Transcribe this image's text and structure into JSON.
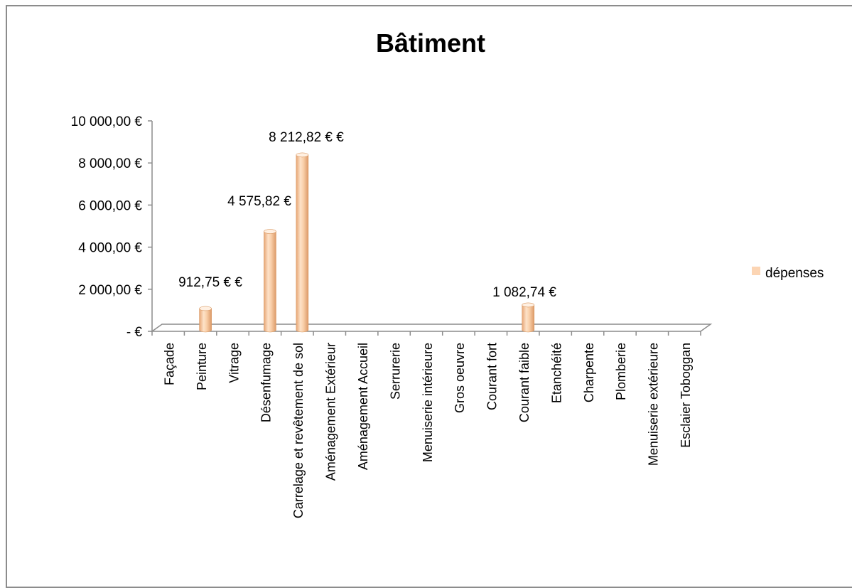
{
  "chart_data": {
    "type": "bar",
    "title": "Bâtiment",
    "categories": [
      "Façade",
      "Peinture",
      "Vitrage",
      "Désenfumage",
      "Carrelage et revêtement de sol",
      "Aménagement Extérieur",
      "Aménagement Accueil",
      "Serrurerie",
      "Menuiserie intérieure",
      "Gros oeuvre",
      "Courant fort",
      "Courant faible",
      "Etanchéité",
      "Charpente",
      "Plomberie",
      "Menuiserie extérieure",
      "Esclaier Toboggan"
    ],
    "series": [
      {
        "name": "dépenses",
        "values": [
          0,
          912.75,
          0,
          4575.82,
          8212.82,
          0,
          0,
          0,
          0,
          0,
          0,
          1082.74,
          0,
          0,
          0,
          0,
          0
        ],
        "data_labels": [
          "",
          "912,75 €  €",
          "",
          "4 575,82 €",
          "8 212,82 €  €",
          "",
          "",
          "",
          "",
          "",
          "",
          "1 082,74 €",
          "",
          "",
          "",
          "",
          ""
        ]
      }
    ],
    "y_ticks": [
      {
        "value": 0,
        "label": "-   €"
      },
      {
        "value": 2000,
        "label": "2 000,00 €"
      },
      {
        "value": 4000,
        "label": "4 000,00 €"
      },
      {
        "value": 6000,
        "label": "6 000,00 €"
      },
      {
        "value": 8000,
        "label": "8 000,00 €"
      },
      {
        "value": 10000,
        "label": "10 000,00 €"
      }
    ],
    "ylim": [
      0,
      10000
    ],
    "grid": false,
    "legend": "right",
    "style": "3d-cylinder",
    "colors": {
      "bar": "#fcd5b4",
      "bar_dark": "#e8a877",
      "bar_light": "#fff0e2",
      "axis": "#8c8c8c"
    }
  }
}
